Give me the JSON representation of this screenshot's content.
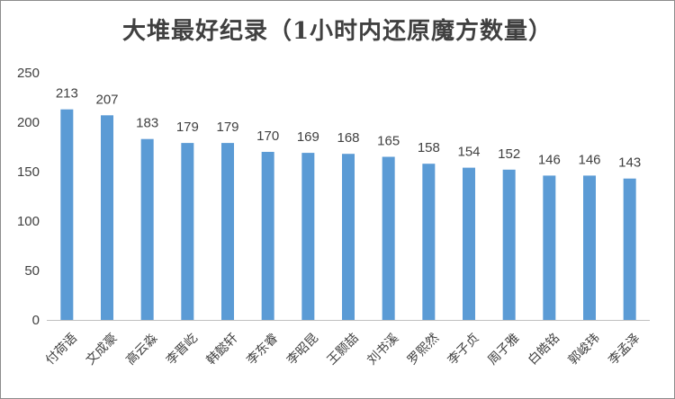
{
  "chart_data": {
    "type": "bar",
    "title": "大堆最好纪录（1小时内还原魔方数量）",
    "xlabel": "",
    "ylabel": "",
    "ylim": [
      0,
      250
    ],
    "yticks": [
      0,
      50,
      100,
      150,
      200,
      250
    ],
    "grid": false,
    "bar_color": "#5b9bd5",
    "categories": [
      "付荷语",
      "文成豪",
      "高云淼",
      "李晋屹",
      "韩懿轩",
      "李东睿",
      "李昭昆",
      "王颢喆",
      "刘书溪",
      "罗熙然",
      "李子贞",
      "周子雅",
      "白皓铭",
      "郭峻玮",
      "李孟泽"
    ],
    "values": [
      213,
      207,
      183,
      179,
      179,
      170,
      169,
      168,
      165,
      158,
      154,
      152,
      146,
      146,
      143
    ]
  }
}
